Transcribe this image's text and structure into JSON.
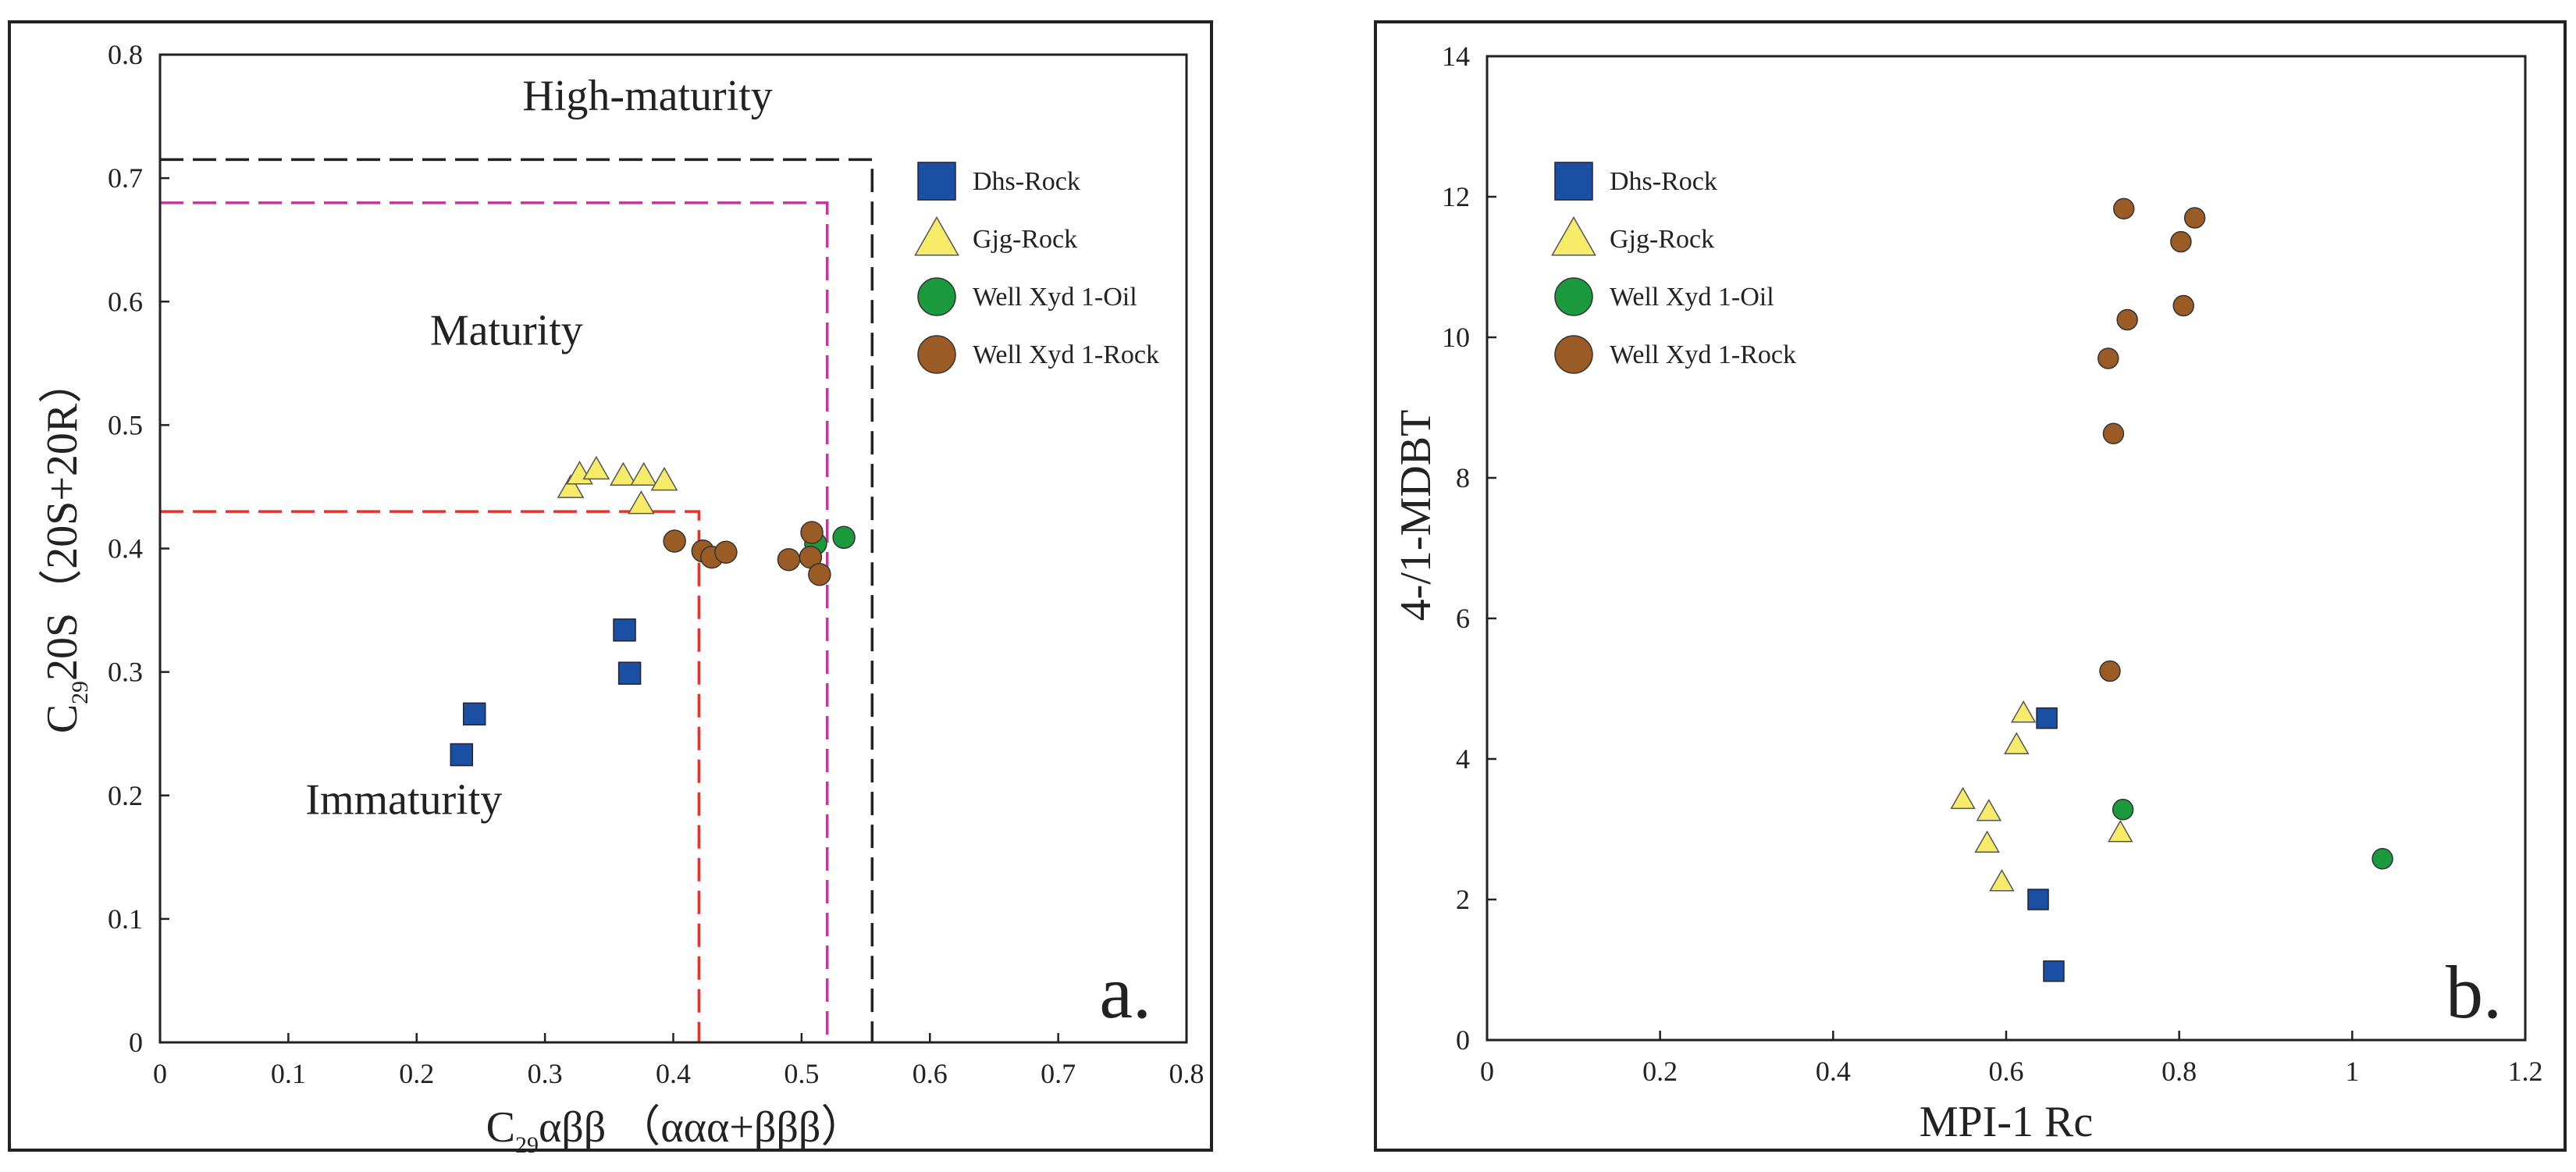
{
  "chart_data": [
    {
      "type": "scatter",
      "panel_label": "a.",
      "xlabel_parts": [
        "C",
        "29",
        "αββ （ααα+βββ）"
      ],
      "ylabel_parts": [
        "C",
        "29",
        "20S（20S+20R）"
      ],
      "xlim": [
        0,
        0.8
      ],
      "ylim": [
        0,
        0.8
      ],
      "xticks": [
        "0",
        "0.1",
        "0.2",
        "0.3",
        "0.4",
        "0.5",
        "0.6",
        "0.7",
        "0.8"
      ],
      "yticks": [
        "0",
        "0.1",
        "0.2",
        "0.3",
        "0.4",
        "0.5",
        "0.6",
        "0.7",
        "0.8"
      ],
      "regions": [
        {
          "label": "High-maturity",
          "x": 0.38,
          "y": 0.755
        },
        {
          "label": "Maturity",
          "x": 0.27,
          "y": 0.565
        },
        {
          "label": "Immaturity",
          "x": 0.19,
          "y": 0.185
        }
      ],
      "boundaries": [
        {
          "color": "#222222",
          "x": 0.555,
          "y": 0.715
        },
        {
          "color": "#c0399c",
          "x": 0.52,
          "y": 0.68
        },
        {
          "color": "#e8332d",
          "x": 0.42,
          "y": 0.43
        }
      ],
      "series": [
        {
          "name": "Dhs-Rock",
          "marker": "square",
          "color": "#1a4fa3",
          "points": [
            [
              0.235,
              0.233
            ],
            [
              0.245,
              0.266
            ],
            [
              0.362,
              0.334
            ],
            [
              0.366,
              0.299
            ]
          ]
        },
        {
          "name": "Gjg-Rock",
          "marker": "triangle",
          "color": "#f7ec6a",
          "points": [
            [
              0.32,
              0.449
            ],
            [
              0.327,
              0.46
            ],
            [
              0.34,
              0.464
            ],
            [
              0.361,
              0.459
            ],
            [
              0.377,
              0.459
            ],
            [
              0.393,
              0.455
            ],
            [
              0.375,
              0.436
            ]
          ]
        },
        {
          "name": "Well Xyd 1-Oil",
          "marker": "circle",
          "color": "#1a9a3c",
          "points": [
            [
              0.511,
              0.404
            ],
            [
              0.533,
              0.409
            ]
          ]
        },
        {
          "name": "Well Xyd 1-Rock",
          "marker": "circle",
          "color": "#9a5c24",
          "points": [
            [
              0.401,
              0.406
            ],
            [
              0.423,
              0.398
            ],
            [
              0.43,
              0.393
            ],
            [
              0.441,
              0.397
            ],
            [
              0.49,
              0.391
            ],
            [
              0.507,
              0.393
            ],
            [
              0.508,
              0.413
            ],
            [
              0.514,
              0.379
            ]
          ]
        }
      ]
    },
    {
      "type": "scatter",
      "panel_label": "b.",
      "xlabel": "MPI-1 Rc",
      "ylabel": "4-/1-MDBT",
      "xlim": [
        0,
        1.2
      ],
      "ylim": [
        0,
        14
      ],
      "xticks": [
        "0",
        "0.2",
        "0.4",
        "0.6",
        "0.8",
        "1",
        "1.2"
      ],
      "yticks": [
        "0",
        "2",
        "4",
        "6",
        "8",
        "10",
        "12",
        "14"
      ],
      "series": [
        {
          "name": "Dhs-Rock",
          "marker": "square",
          "color": "#1a4fa3",
          "points": [
            [
              0.647,
              4.58
            ],
            [
              0.637,
              2.0
            ],
            [
              0.655,
              0.98
            ]
          ]
        },
        {
          "name": "Gjg-Rock",
          "marker": "triangle",
          "color": "#f7ec6a",
          "points": [
            [
              0.62,
              4.65
            ],
            [
              0.612,
              4.2
            ],
            [
              0.55,
              3.42
            ],
            [
              0.58,
              3.25
            ],
            [
              0.578,
              2.8
            ],
            [
              0.595,
              2.25
            ],
            [
              0.732,
              2.95
            ]
          ]
        },
        {
          "name": "Well Xyd 1-Oil",
          "marker": "circle",
          "color": "#1a9a3c",
          "points": [
            [
              0.735,
              3.28
            ],
            [
              1.035,
              2.58
            ]
          ]
        },
        {
          "name": "Well Xyd 1-Rock",
          "marker": "circle",
          "color": "#9a5c24",
          "points": [
            [
              0.736,
              11.83
            ],
            [
              0.818,
              11.7
            ],
            [
              0.802,
              11.36
            ],
            [
              0.805,
              10.45
            ],
            [
              0.74,
              10.25
            ],
            [
              0.718,
              9.7
            ],
            [
              0.724,
              8.63
            ],
            [
              0.72,
              5.25
            ]
          ]
        }
      ]
    }
  ]
}
